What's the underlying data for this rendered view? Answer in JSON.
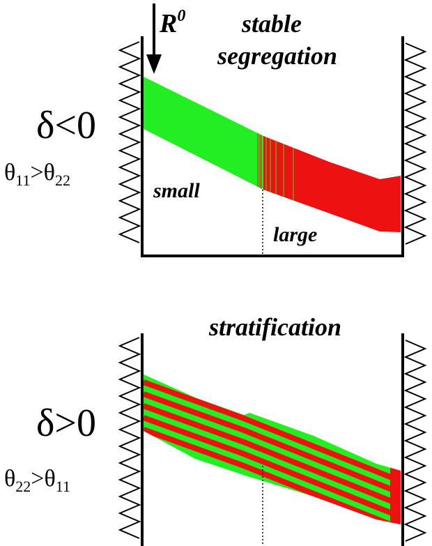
{
  "colors": {
    "small_grains": "#22ee22",
    "large_grains": "#ee1111",
    "walls": "#000000"
  },
  "top_panel": {
    "arrow_label": "R",
    "arrow_label_sup": "0",
    "title_line1": "stable",
    "title_line2": "segregation",
    "delta_condition": "δ<0",
    "theta_left": "θ",
    "theta_left_sub": "11",
    "theta_op": ">",
    "theta_right": "θ",
    "theta_right_sub": "22",
    "region_left": "small",
    "region_right": "large"
  },
  "bottom_panel": {
    "title": "stratification",
    "delta_condition": "δ>0",
    "theta_left": "θ",
    "theta_left_sub": "22",
    "theta_op": ">",
    "theta_right": "θ",
    "theta_right_sub": "11"
  }
}
